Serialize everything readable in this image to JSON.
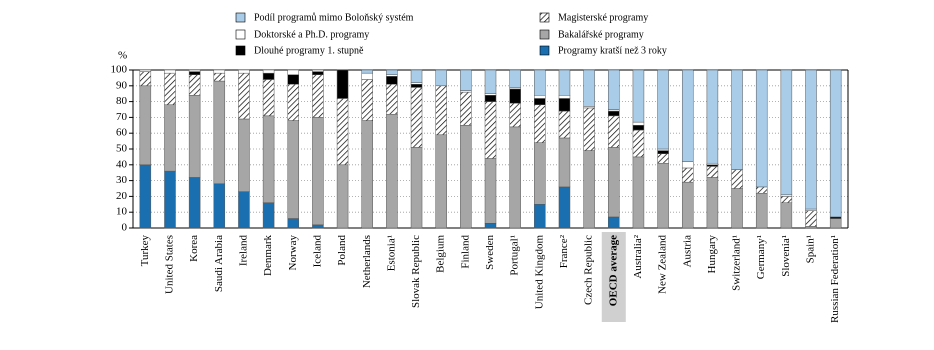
{
  "chart_data": {
    "type": "stacked_bar",
    "y_label": "%",
    "categories": [
      "Turkey",
      "United States",
      "Korea",
      "Saudi Arabia",
      "Ireland",
      "Denmark",
      "Norway",
      "Iceland",
      "Poland",
      "Netherlands",
      "Estonia¹",
      "Slovak Republic",
      "Belgium",
      "Finland",
      "Sweden",
      "Portugal¹",
      "United Kingdom",
      "France²",
      "Czech Republic",
      "OECD average",
      "Australia²",
      "New Zealand",
      "Austria",
      "Hungary",
      "Switzerland¹",
      "Germany¹",
      "Slovenia¹",
      "Spain¹",
      "Russian Federation¹"
    ],
    "highlight": [
      19
    ],
    "series": [
      {
        "name": "Programy kratší než 3 roky",
        "color": "#1a6fb0",
        "values": [
          40,
          36,
          32,
          28,
          23,
          16,
          6,
          2,
          0,
          0,
          0,
          0,
          0,
          0,
          3,
          0,
          15,
          26,
          0,
          7,
          0,
          0,
          0,
          0,
          0,
          0,
          0,
          0,
          0
        ]
      },
      {
        "name": "Bakalářské programy",
        "color": "#a6a6a6",
        "values": [
          50,
          42,
          52,
          65,
          46,
          55,
          62,
          68,
          40,
          68,
          72,
          51,
          59,
          65,
          41,
          64,
          39,
          31,
          49,
          44,
          45,
          41,
          29,
          32,
          25,
          22,
          16,
          1,
          6
        ]
      },
      {
        "name": "Magisterské programy",
        "color": "#000000",
        "hatch": true,
        "values": [
          9,
          20,
          13,
          5,
          29,
          23,
          23,
          27,
          42,
          26,
          19,
          38,
          31,
          21,
          36,
          15,
          24,
          17,
          27,
          20,
          17,
          6,
          9,
          7,
          12,
          4,
          4,
          10,
          0
        ]
      },
      {
        "name": "Dlouhé programy 1. stupně",
        "color": "#000000",
        "values": [
          0,
          0,
          2,
          0,
          0,
          4,
          6,
          2,
          18,
          0,
          5,
          2,
          0,
          0,
          4,
          9,
          4,
          8,
          0,
          3,
          3,
          2,
          0,
          1,
          0,
          0,
          0,
          0,
          1
        ]
      },
      {
        "name": "Doktorské a Ph.D. programy",
        "color": "#ffffff",
        "values": [
          1,
          2,
          1,
          2,
          2,
          2,
          3,
          1,
          0,
          4,
          1,
          1,
          0,
          1,
          1,
          1,
          2,
          2,
          1,
          1,
          2,
          1,
          4,
          1,
          0,
          0,
          1,
          1,
          0
        ]
      },
      {
        "name": "Podíl programů mimo Boloňský systém",
        "color": "#a9cce8",
        "values": [
          0,
          0,
          0,
          0,
          0,
          0,
          0,
          0,
          0,
          2,
          3,
          8,
          10,
          13,
          15,
          11,
          16,
          16,
          23,
          25,
          33,
          50,
          58,
          59,
          63,
          74,
          79,
          88,
          93
        ]
      }
    ],
    "ylim": [
      0,
      100
    ],
    "yticks": [
      0,
      10,
      20,
      30,
      40,
      50,
      60,
      70,
      80,
      90,
      100
    ],
    "grid": true
  }
}
